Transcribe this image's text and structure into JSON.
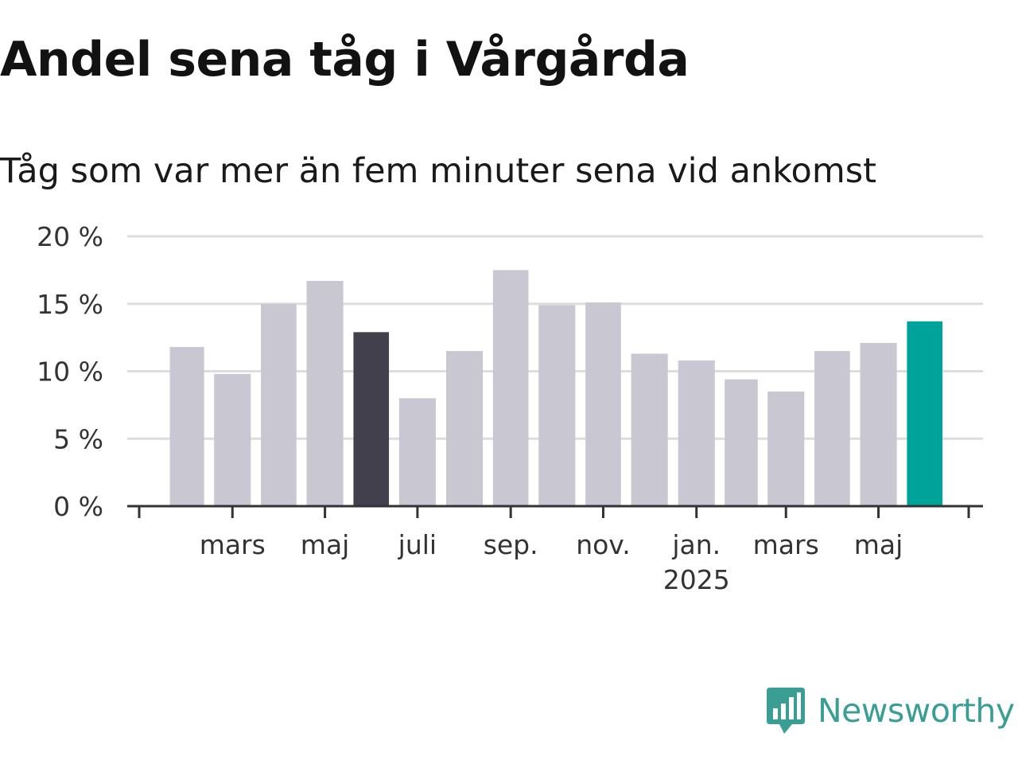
{
  "title": "Andel sena tåg i Vårgårda",
  "subtitle": "Tåg som var mer än fem minuter sena vid ankomst",
  "brand": {
    "name": "Newsworthy",
    "color": "#3a9e95",
    "icon": "newsworthy-logo-icon"
  },
  "colors": {
    "bar": "#c8c7d2",
    "highlight_prior": "#43404d",
    "highlight_latest": "#00a39a",
    "axis": "#333333",
    "grid": "#dddddd"
  },
  "chart_data": {
    "type": "bar",
    "title": "Andel sena tåg i Vårgårda",
    "subtitle": "Tåg som var mer än fem minuter sena vid ankomst",
    "months": [
      "2024-02",
      "2024-03",
      "2024-04",
      "2024-05",
      "2024-06",
      "2024-07",
      "2024-08",
      "2024-09",
      "2024-10",
      "2024-11",
      "2024-12",
      "2025-01",
      "2025-02",
      "2025-03",
      "2025-04",
      "2025-05",
      "2025-06"
    ],
    "values": [
      11.8,
      9.8,
      15.0,
      16.7,
      12.9,
      8.0,
      11.5,
      17.5,
      14.9,
      15.1,
      11.3,
      10.8,
      9.4,
      8.5,
      11.5,
      12.1,
      13.7
    ],
    "highlight": {
      "2024-06": "highlight_prior",
      "2025-06": "highlight_latest"
    },
    "ylim": [
      0,
      20
    ],
    "yticks": [
      0,
      5,
      10,
      15,
      20
    ],
    "ytick_labels": [
      "0 %",
      "5 %",
      "10 %",
      "15 %",
      "20 %"
    ],
    "xtick_labels": [
      {
        "month": "2024-03",
        "label": "mars"
      },
      {
        "month": "2024-05",
        "label": "maj"
      },
      {
        "month": "2024-07",
        "label": "juli"
      },
      {
        "month": "2024-09",
        "label": "sep."
      },
      {
        "month": "2024-11",
        "label": "nov."
      },
      {
        "month": "2025-01",
        "label": "jan.",
        "sublabel": "2025"
      },
      {
        "month": "2025-03",
        "label": "mars"
      },
      {
        "month": "2025-05",
        "label": "maj"
      }
    ],
    "xlim": [
      "2024-01-15",
      "2025-07-15"
    ],
    "grid": true,
    "legend": "none",
    "xlabel": "",
    "ylabel": ""
  }
}
